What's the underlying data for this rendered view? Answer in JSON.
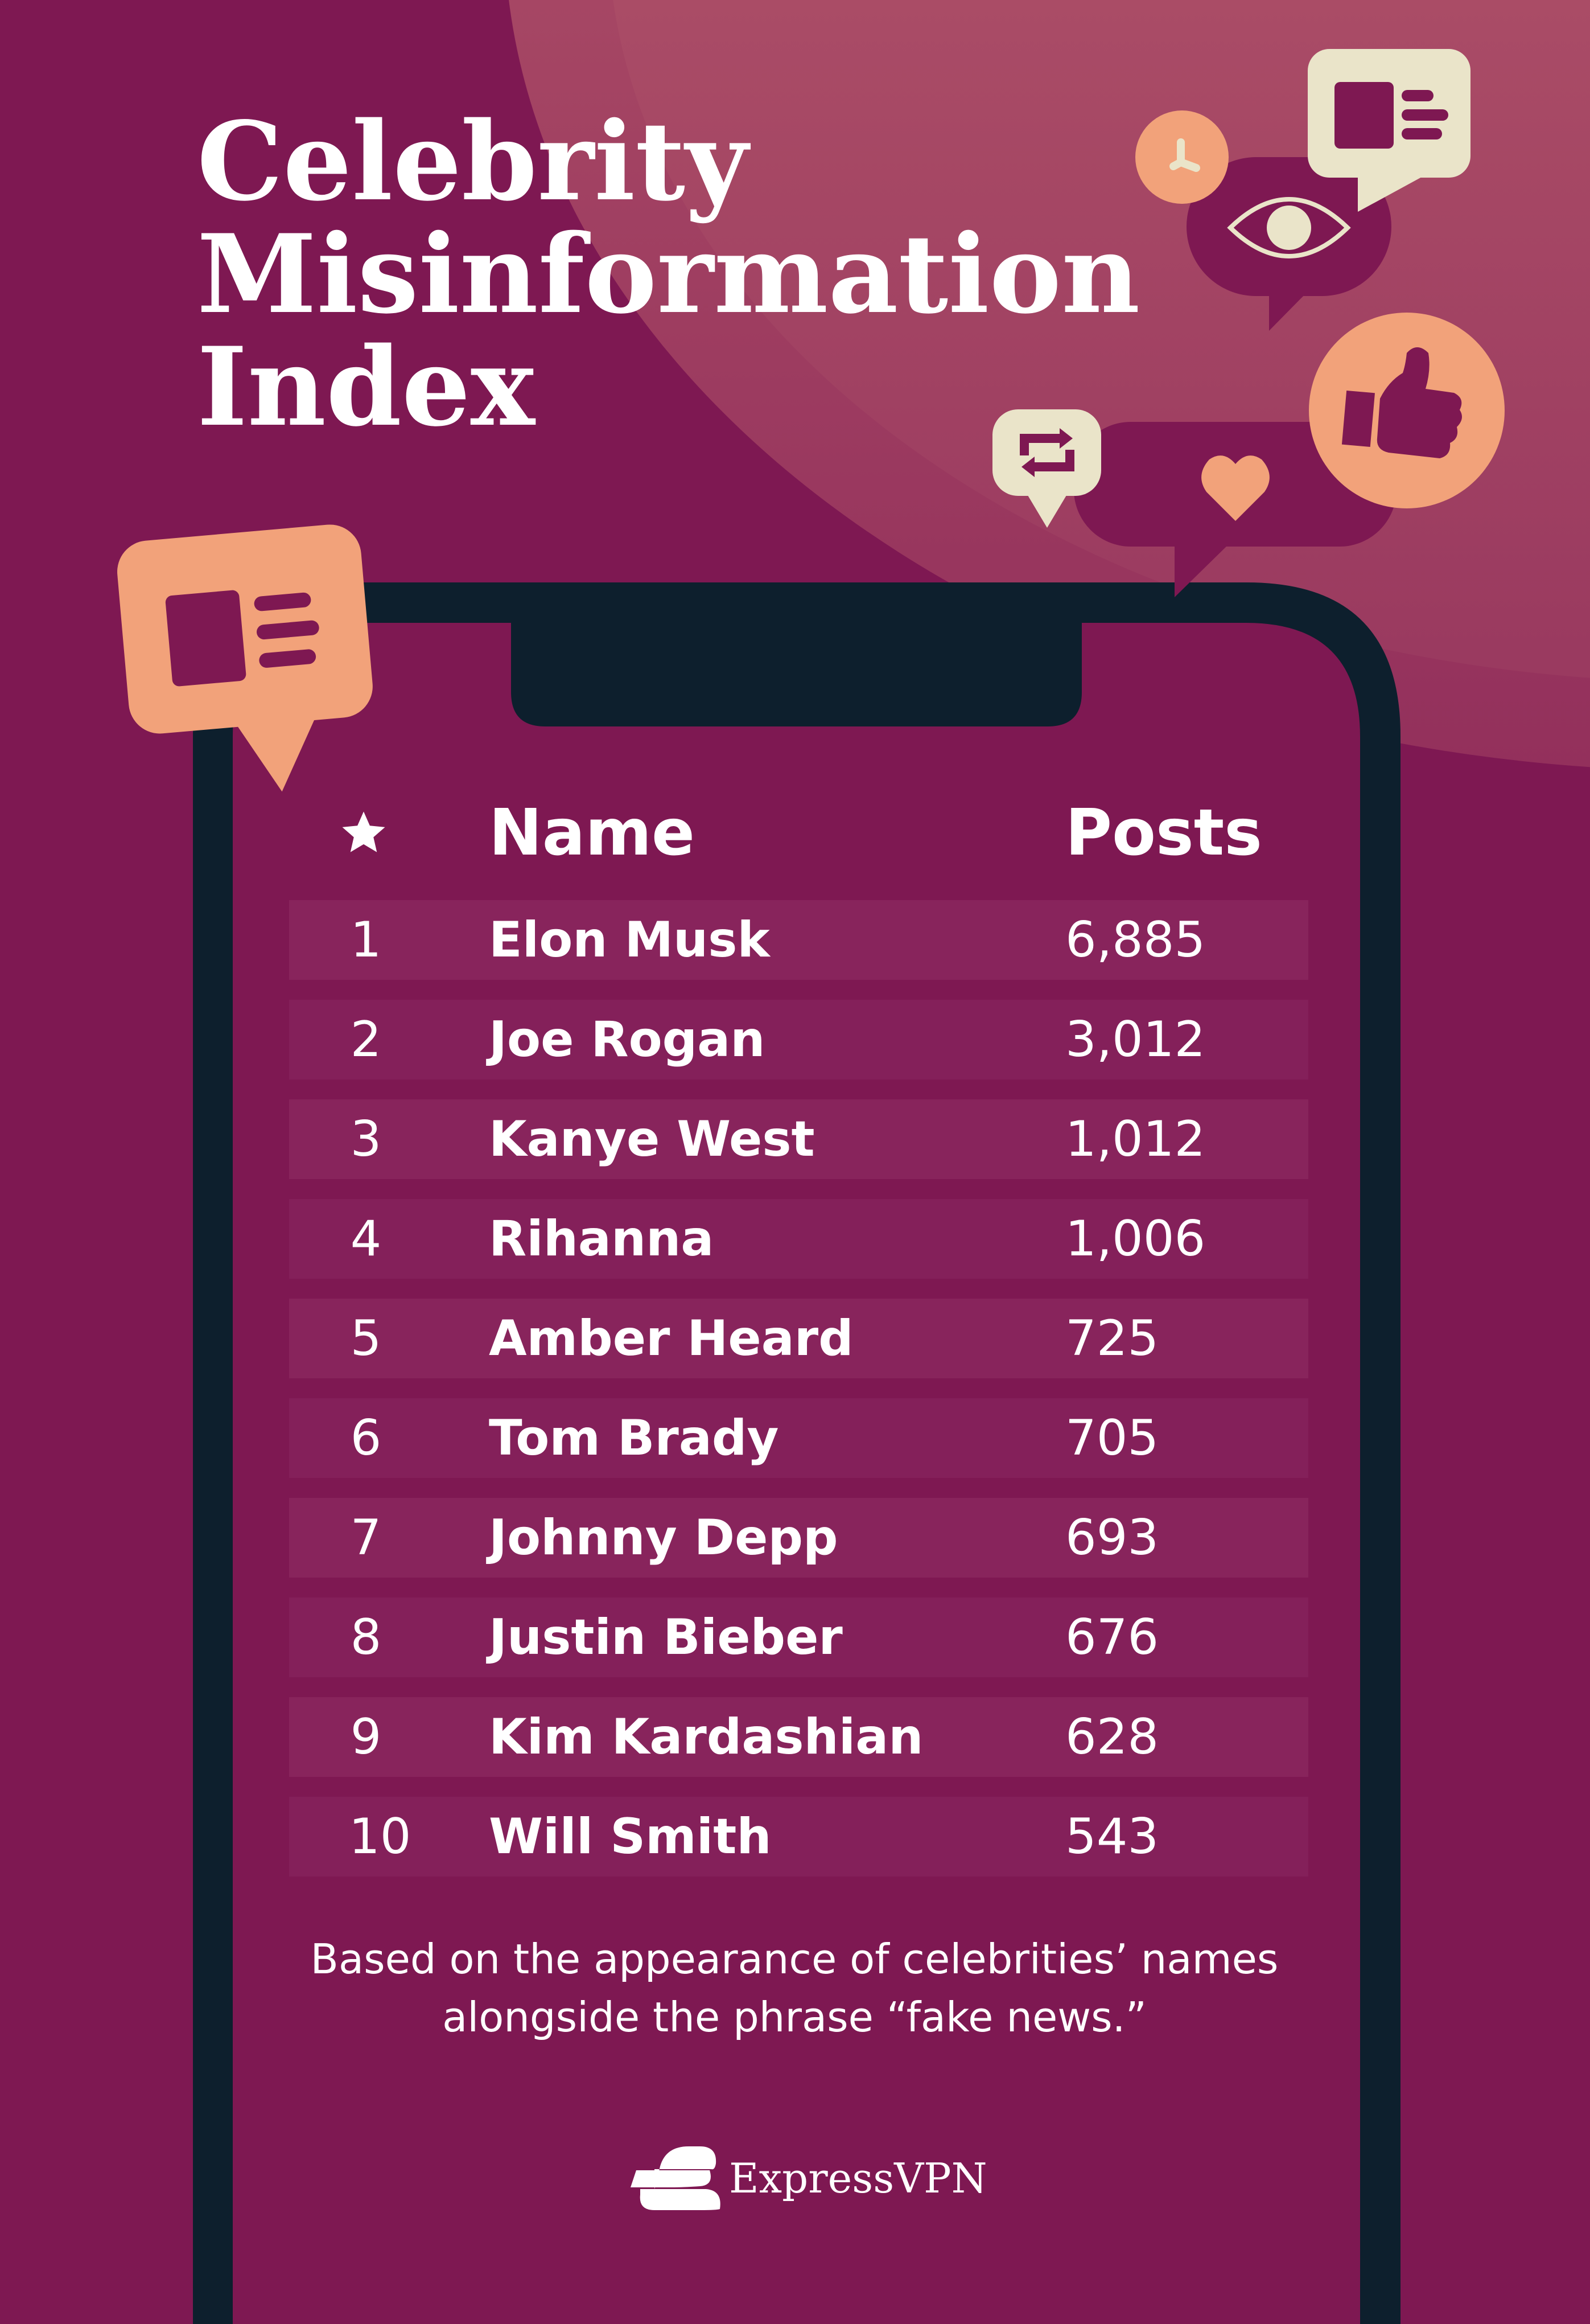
{
  "title": {
    "lines": [
      "Celebrity",
      "Misinformation",
      "Index"
    ]
  },
  "colors": {
    "background": "#7E1852",
    "phone_frame": "#0D1F2D",
    "accent_peach": "#F2A27A",
    "accent_cream": "#EAE4C9",
    "row_band": "#88245C"
  },
  "table": {
    "rank_header_icon": "star-icon",
    "columns": [
      "Name",
      "Posts"
    ],
    "rows": [
      {
        "rank": "1",
        "name": "Elon Musk",
        "posts": "6,885"
      },
      {
        "rank": "2",
        "name": "Joe Rogan",
        "posts": "3,012"
      },
      {
        "rank": "3",
        "name": "Kanye West",
        "posts": "1,012"
      },
      {
        "rank": "4",
        "name": "Rihanna",
        "posts": "1,006"
      },
      {
        "rank": "5",
        "name": "Amber Heard",
        "posts": "725"
      },
      {
        "rank": "6",
        "name": "Tom Brady",
        "posts": "705"
      },
      {
        "rank": "7",
        "name": "Johnny Depp",
        "posts": "693"
      },
      {
        "rank": "8",
        "name": "Justin Bieber",
        "posts": "676"
      },
      {
        "rank": "9",
        "name": "Kim Kardashian",
        "posts": "628"
      },
      {
        "rank": "10",
        "name": "Will Smith",
        "posts": "543"
      }
    ]
  },
  "footnote": {
    "lines": [
      "Based on the appearance of celebrities’ names",
      "alongside the phrase “fake news.”"
    ]
  },
  "brand": {
    "name": "ExpressVPN"
  },
  "icons": [
    "news-article-icon",
    "share-icon",
    "eye-icon",
    "thumbs-up-icon",
    "repost-icon",
    "heart-icon"
  ]
}
